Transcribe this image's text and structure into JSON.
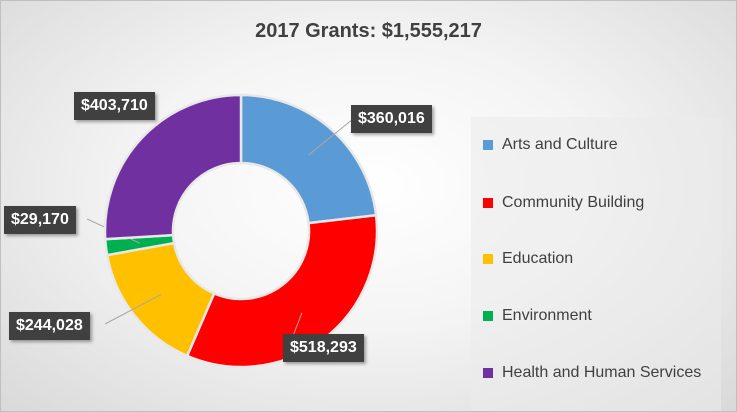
{
  "chart_data": {
    "type": "pie",
    "variant": "donut",
    "title": "2017 Grants:  $1,555,217",
    "categories": [
      "Arts and Culture",
      "Community Building",
      "Education",
      "Environment",
      "Health and Human Services"
    ],
    "values": [
      360016,
      518293,
      244028,
      29170,
      403710
    ],
    "data_labels": [
      "$360,016",
      "$518,293",
      "$244,028",
      "$29,170",
      "$403,710"
    ],
    "colors": [
      "#5B9BD5",
      "#FF0000",
      "#FFC000",
      "#00B050",
      "#7030A0"
    ],
    "legend_position": "right",
    "start_angle": "12 o'clock, clockwise"
  }
}
